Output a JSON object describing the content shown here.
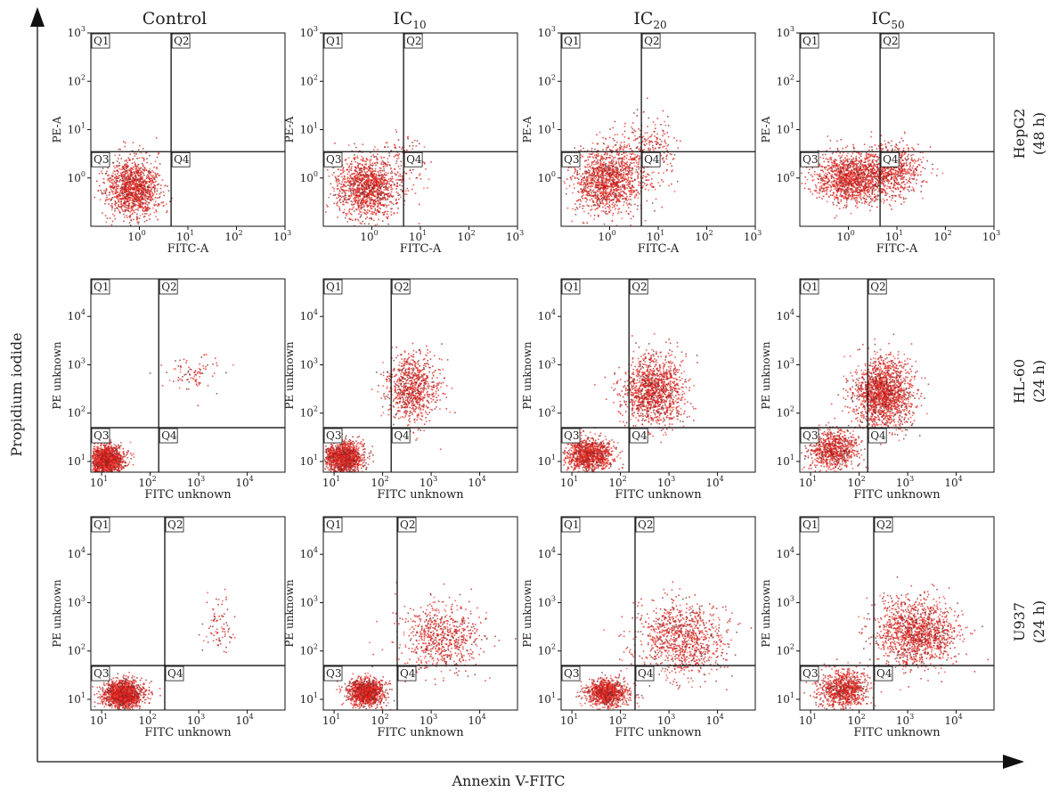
{
  "figure": {
    "y_axis_title": "Propidium iodide",
    "x_axis_title": "Annexin V-FITC",
    "columns": [
      {
        "base": "Control",
        "sub": ""
      },
      {
        "base": "IC",
        "sub": "10"
      },
      {
        "base": "IC",
        "sub": "20"
      },
      {
        "base": "IC",
        "sub": "50"
      }
    ],
    "rows": [
      {
        "line1": "HepG2",
        "line2": "(48 h)"
      },
      {
        "line1": "HL-60",
        "line2": "(24 h)"
      },
      {
        "line1": "U937",
        "line2": "(24 h)"
      }
    ],
    "quadrant_labels": [
      "Q1",
      "Q2",
      "Q3",
      "Q4"
    ]
  },
  "chart_data": [
    {
      "type": "scatter",
      "row": "HepG2 (48 h)",
      "column": "Control",
      "xlabel": "FITC-A",
      "ylabel": "PE-A",
      "x_scale": "log",
      "y_scale": "log",
      "xlim": [
        0.1,
        1000
      ],
      "ylim": [
        0.1,
        1000
      ],
      "x_ticks": [
        1,
        10,
        100,
        1000
      ],
      "y_ticks": [
        1,
        10,
        100,
        1000
      ],
      "gate": {
        "x": 4.5,
        "y": 3.5
      },
      "clusters": [
        {
          "cx": 0.75,
          "cy": 0.65,
          "sx": 0.28,
          "sy": 0.3,
          "n": 1300
        }
      ]
    },
    {
      "type": "scatter",
      "row": "HepG2 (48 h)",
      "column": "IC10",
      "xlabel": "FITC-A",
      "ylabel": "PE-A",
      "x_scale": "log",
      "y_scale": "log",
      "xlim": [
        0.1,
        1000
      ],
      "ylim": [
        0.1,
        1000
      ],
      "x_ticks": [
        1,
        10,
        100,
        1000
      ],
      "y_ticks": [
        1,
        10,
        100,
        1000
      ],
      "gate": {
        "x": 4.5,
        "y": 3.5
      },
      "clusters": [
        {
          "cx": 0.75,
          "cy": 0.65,
          "sx": 0.32,
          "sy": 0.32,
          "n": 1300
        },
        {
          "cx": 4,
          "cy": 2,
          "sx": 0.35,
          "sy": 0.35,
          "n": 120
        }
      ]
    },
    {
      "type": "scatter",
      "row": "HepG2 (48 h)",
      "column": "IC20",
      "xlabel": "FITC-A",
      "ylabel": "PE-A",
      "x_scale": "log",
      "y_scale": "log",
      "xlim": [
        0.1,
        1000
      ],
      "ylim": [
        0.1,
        1000
      ],
      "x_ticks": [
        1,
        10,
        100,
        1000
      ],
      "y_ticks": [
        1,
        10,
        100,
        1000
      ],
      "gate": {
        "x": 4.5,
        "y": 3.5
      },
      "clusters": [
        {
          "cx": 0.8,
          "cy": 0.9,
          "sx": 0.35,
          "sy": 0.33,
          "n": 1300
        },
        {
          "cx": 5,
          "cy": 3,
          "sx": 0.32,
          "sy": 0.4,
          "n": 350
        }
      ]
    },
    {
      "type": "scatter",
      "row": "HepG2 (48 h)",
      "column": "IC50",
      "xlabel": "FITC-A",
      "ylabel": "PE-A",
      "x_scale": "log",
      "y_scale": "log",
      "xlim": [
        0.1,
        1000
      ],
      "ylim": [
        0.1,
        1000
      ],
      "x_ticks": [
        1,
        10,
        100,
        1000
      ],
      "y_ticks": [
        1,
        10,
        100,
        1000
      ],
      "gate": {
        "x": 4.5,
        "y": 3.5
      },
      "clusters": [
        {
          "cx": 1.2,
          "cy": 1.0,
          "sx": 0.38,
          "sy": 0.25,
          "n": 1400
        },
        {
          "cx": 8,
          "cy": 1.5,
          "sx": 0.3,
          "sy": 0.28,
          "n": 650
        }
      ]
    },
    {
      "type": "scatter",
      "row": "HL-60 (24 h)",
      "column": "Control",
      "xlabel": "FITC unknown",
      "ylabel": "PE unknown",
      "x_scale": "log",
      "y_scale": "log",
      "xlim": [
        6,
        60000
      ],
      "ylim": [
        6,
        60000
      ],
      "x_ticks": [
        10,
        100,
        1000,
        10000
      ],
      "y_ticks": [
        10,
        100,
        1000,
        10000
      ],
      "gate": {
        "x": 150,
        "y": 50
      },
      "clusters": [
        {
          "cx": 12,
          "cy": 11,
          "sx": 0.18,
          "sy": 0.15,
          "n": 1500
        },
        {
          "cx": 700,
          "cy": 700,
          "sx": 0.3,
          "sy": 0.17,
          "n": 90
        }
      ]
    },
    {
      "type": "scatter",
      "row": "HL-60 (24 h)",
      "column": "IC10",
      "xlabel": "FITC unknown",
      "ylabel": "PE unknown",
      "x_scale": "log",
      "y_scale": "log",
      "xlim": [
        6,
        60000
      ],
      "ylim": [
        6,
        60000
      ],
      "x_ticks": [
        10,
        100,
        1000,
        10000
      ],
      "y_ticks": [
        10,
        100,
        1000,
        10000
      ],
      "gate": {
        "x": 150,
        "y": 50
      },
      "clusters": [
        {
          "cx": 15,
          "cy": 12,
          "sx": 0.2,
          "sy": 0.17,
          "n": 1400
        },
        {
          "cx": 400,
          "cy": 350,
          "sx": 0.28,
          "sy": 0.35,
          "n": 850
        }
      ]
    },
    {
      "type": "scatter",
      "row": "HL-60 (24 h)",
      "column": "IC20",
      "xlabel": "FITC unknown",
      "ylabel": "PE unknown",
      "x_scale": "log",
      "y_scale": "log",
      "xlim": [
        6,
        60000
      ],
      "ylim": [
        6,
        60000
      ],
      "x_ticks": [
        10,
        100,
        1000,
        10000
      ],
      "y_ticks": [
        10,
        100,
        1000,
        10000
      ],
      "gate": {
        "x": 150,
        "y": 50
      },
      "clusters": [
        {
          "cx": 22,
          "cy": 14,
          "sx": 0.25,
          "sy": 0.18,
          "n": 1100
        },
        {
          "cx": 450,
          "cy": 300,
          "sx": 0.33,
          "sy": 0.35,
          "n": 1300
        }
      ]
    },
    {
      "type": "scatter",
      "row": "HL-60 (24 h)",
      "column": "IC50",
      "xlabel": "FITC unknown",
      "ylabel": "PE unknown",
      "x_scale": "log",
      "y_scale": "log",
      "xlim": [
        6,
        60000
      ],
      "ylim": [
        6,
        60000
      ],
      "x_ticks": [
        10,
        100,
        1000,
        10000
      ],
      "y_ticks": [
        10,
        100,
        1000,
        10000
      ],
      "gate": {
        "x": 150,
        "y": 50
      },
      "clusters": [
        {
          "cx": 28,
          "cy": 18,
          "sx": 0.25,
          "sy": 0.2,
          "n": 800
        },
        {
          "cx": 300,
          "cy": 250,
          "sx": 0.3,
          "sy": 0.35,
          "n": 1700
        }
      ]
    },
    {
      "type": "scatter",
      "row": "U937 (24 h)",
      "column": "Control",
      "xlabel": "FITC unknown",
      "ylabel": "PE unknown",
      "x_scale": "log",
      "y_scale": "log",
      "xlim": [
        6,
        60000
      ],
      "ylim": [
        6,
        60000
      ],
      "x_ticks": [
        10,
        100,
        1000,
        10000
      ],
      "y_ticks": [
        10,
        100,
        1000,
        10000
      ],
      "gate": {
        "x": 200,
        "y": 50
      },
      "clusters": [
        {
          "cx": 28,
          "cy": 13,
          "sx": 0.2,
          "sy": 0.14,
          "n": 1500
        },
        {
          "cx": 2500,
          "cy": 350,
          "sx": 0.15,
          "sy": 0.3,
          "n": 80
        }
      ]
    },
    {
      "type": "scatter",
      "row": "U937 (24 h)",
      "column": "IC10",
      "xlabel": "FITC unknown",
      "ylabel": "PE unknown",
      "x_scale": "log",
      "y_scale": "log",
      "xlim": [
        6,
        60000
      ],
      "ylim": [
        6,
        60000
      ],
      "x_ticks": [
        10,
        100,
        1000,
        10000
      ],
      "y_ticks": [
        10,
        100,
        1000,
        10000
      ],
      "gate": {
        "x": 200,
        "y": 50
      },
      "clusters": [
        {
          "cx": 45,
          "cy": 14,
          "sx": 0.18,
          "sy": 0.14,
          "n": 1200
        },
        {
          "cx": 1500,
          "cy": 200,
          "sx": 0.42,
          "sy": 0.35,
          "n": 700
        }
      ]
    },
    {
      "type": "scatter",
      "row": "U937 (24 h)",
      "column": "IC20",
      "xlabel": "FITC unknown",
      "ylabel": "PE unknown",
      "x_scale": "log",
      "y_scale": "log",
      "xlim": [
        6,
        60000
      ],
      "ylim": [
        6,
        60000
      ],
      "x_ticks": [
        10,
        100,
        1000,
        10000
      ],
      "y_ticks": [
        10,
        100,
        1000,
        10000
      ],
      "gate": {
        "x": 200,
        "y": 50
      },
      "clusters": [
        {
          "cx": 50,
          "cy": 14,
          "sx": 0.22,
          "sy": 0.14,
          "n": 1000
        },
        {
          "cx": 1800,
          "cy": 180,
          "sx": 0.45,
          "sy": 0.38,
          "n": 1000
        }
      ]
    },
    {
      "type": "scatter",
      "row": "U937 (24 h)",
      "column": "IC50",
      "xlabel": "FITC unknown",
      "ylabel": "PE unknown",
      "x_scale": "log",
      "y_scale": "log",
      "xlim": [
        6,
        60000
      ],
      "ylim": [
        6,
        60000
      ],
      "x_ticks": [
        10,
        100,
        1000,
        10000
      ],
      "y_ticks": [
        10,
        100,
        1000,
        10000
      ],
      "gate": {
        "x": 200,
        "y": 50
      },
      "clusters": [
        {
          "cx": 45,
          "cy": 16,
          "sx": 0.25,
          "sy": 0.2,
          "n": 900
        },
        {
          "cx": 1500,
          "cy": 250,
          "sx": 0.42,
          "sy": 0.35,
          "n": 1400
        }
      ]
    }
  ]
}
